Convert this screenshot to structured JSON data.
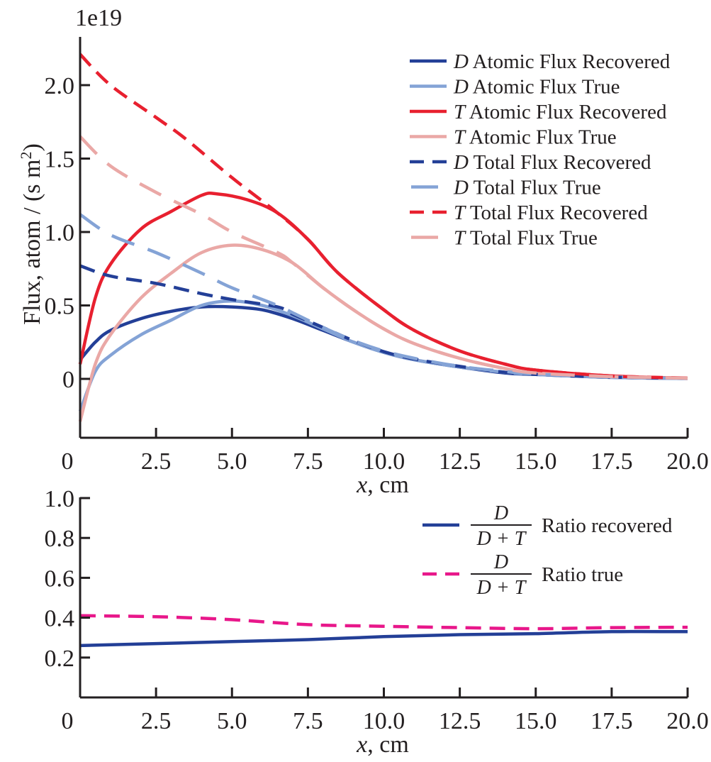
{
  "chart_data": [
    {
      "type": "line",
      "title": "",
      "offset_label": "1e19",
      "xlabel": "x, cm",
      "xlabel_var": "x",
      "xlabel_unit": ", cm",
      "ylabel": "Flux, atom / (s m²)",
      "ylabel_main": "Flux, atom / (s m",
      "ylabel_sup": "2",
      "ylabel_close": ")",
      "xlim": [
        0,
        20
      ],
      "ylim": [
        -0.4,
        2.33
      ],
      "xticks": [
        0,
        2.5,
        5.0,
        7.5,
        10.0,
        12.5,
        15.0,
        17.5,
        20.0
      ],
      "xtick_labels": [
        "0",
        "2.5",
        "5.0",
        "7.5",
        "10.0",
        "12.5",
        "15.0",
        "17.5",
        "20.0"
      ],
      "yticks": [
        0,
        0.5,
        1.0,
        1.5,
        2.0
      ],
      "ytick_labels": [
        "0",
        "0.5",
        "1.0",
        "1.5",
        "2.0"
      ],
      "grid": false,
      "legend_position": "top-right",
      "series": [
        {
          "name": "D Atomic Flux Recovered",
          "species": "D",
          "label_rest": " Atomic Flux Recovered",
          "color": "#233f97",
          "dash": "solid",
          "x": [
            0,
            0.5,
            1,
            2,
            3,
            4,
            5,
            6,
            7,
            8,
            9,
            10,
            11,
            12.5,
            14,
            15,
            17.5,
            20
          ],
          "y": [
            0.13,
            0.25,
            0.33,
            0.41,
            0.46,
            0.49,
            0.49,
            0.47,
            0.41,
            0.33,
            0.25,
            0.18,
            0.13,
            0.08,
            0.04,
            0.03,
            0.01,
            0.003
          ]
        },
        {
          "name": "D Atomic Flux True",
          "species": "D",
          "label_rest": " Atomic Flux True",
          "color": "#84a3d6",
          "dash": "solid",
          "x": [
            0,
            0.5,
            1,
            2,
            3,
            4,
            5,
            6,
            7,
            8,
            9,
            10,
            11,
            12.5,
            14,
            15,
            17.5,
            20
          ],
          "y": [
            -0.22,
            0.05,
            0.16,
            0.3,
            0.4,
            0.5,
            0.53,
            0.5,
            0.43,
            0.34,
            0.25,
            0.18,
            0.13,
            0.08,
            0.045,
            0.03,
            0.01,
            0.003
          ]
        },
        {
          "name": "T Atomic Flux Recovered",
          "species": "T",
          "label_rest": " Atomic Flux Recovered",
          "color": "#e8202f",
          "dash": "solid",
          "x": [
            0,
            0.5,
            1,
            2,
            3,
            4,
            4.5,
            5.5,
            6.5,
            7.5,
            8.5,
            10,
            11,
            12.5,
            14,
            15,
            17.5,
            20
          ],
          "y": [
            0.1,
            0.55,
            0.78,
            1.02,
            1.14,
            1.25,
            1.26,
            1.22,
            1.13,
            0.95,
            0.72,
            0.47,
            0.33,
            0.19,
            0.1,
            0.06,
            0.02,
            0.005
          ]
        },
        {
          "name": "T Atomic Flux True",
          "species": "T",
          "label_rest": " Atomic Flux True",
          "color": "#eaa8a6",
          "dash": "solid",
          "x": [
            0,
            0.5,
            1,
            2,
            3,
            4,
            5,
            6,
            7,
            8,
            9,
            10,
            11,
            12.5,
            14,
            15,
            17.5,
            20
          ],
          "y": [
            -0.29,
            0.1,
            0.3,
            0.55,
            0.72,
            0.86,
            0.91,
            0.88,
            0.79,
            0.62,
            0.47,
            0.34,
            0.24,
            0.14,
            0.07,
            0.04,
            0.015,
            0.005
          ]
        },
        {
          "name": "D Total Flux Recovered",
          "species": "D",
          "label_rest": " Total Flux Recovered",
          "color": "#233f97",
          "dash": "dashed",
          "x": [
            0,
            1,
            2.5,
            4,
            5,
            6.5,
            7,
            8,
            9,
            10,
            11,
            12.5,
            14,
            15,
            17.5,
            20
          ],
          "y": [
            0.77,
            0.7,
            0.65,
            0.58,
            0.54,
            0.49,
            0.44,
            0.35,
            0.26,
            0.185,
            0.135,
            0.085,
            0.045,
            0.03,
            0.012,
            0.004
          ]
        },
        {
          "name": "D Total Flux True",
          "species": "D",
          "label_rest": " Total Flux True",
          "color": "#84a3d6",
          "dash": "long-dashed",
          "x": [
            0,
            1,
            2.5,
            4,
            5,
            6.5,
            7,
            8,
            9,
            10,
            11,
            12.5,
            14,
            15,
            17.5,
            20
          ],
          "y": [
            1.12,
            0.98,
            0.86,
            0.72,
            0.62,
            0.5,
            0.45,
            0.35,
            0.26,
            0.19,
            0.14,
            0.085,
            0.05,
            0.032,
            0.012,
            0.004
          ]
        },
        {
          "name": "T Total Flux Recovered",
          "species": "T",
          "label_rest": " Total Flux Recovered",
          "color": "#e8202f",
          "dash": "dashed",
          "x": [
            0,
            1,
            2.5,
            3.5,
            5,
            6.5,
            7.5,
            8.5,
            10,
            11,
            12.5,
            14,
            15,
            17.5,
            20
          ],
          "y": [
            2.21,
            2.0,
            1.78,
            1.63,
            1.37,
            1.13,
            0.95,
            0.72,
            0.47,
            0.33,
            0.19,
            0.1,
            0.06,
            0.02,
            0.006
          ]
        },
        {
          "name": "T Total Flux True",
          "species": "T",
          "label_rest": " Total Flux True",
          "color": "#eaa8a6",
          "dash": "long-dashed",
          "x": [
            0,
            1,
            2.5,
            4,
            5,
            6.5,
            7,
            8,
            9,
            10,
            11,
            12.5,
            14,
            15,
            17.5,
            20
          ],
          "y": [
            1.65,
            1.45,
            1.27,
            1.12,
            1.0,
            0.86,
            0.79,
            0.62,
            0.47,
            0.34,
            0.24,
            0.14,
            0.07,
            0.04,
            0.015,
            0.005
          ]
        }
      ]
    },
    {
      "type": "line",
      "title": "",
      "xlabel": "x, cm",
      "xlabel_var": "x",
      "xlabel_unit": ", cm",
      "ylabel": "",
      "xlim": [
        0,
        20
      ],
      "ylim": [
        0,
        1.0
      ],
      "xticks": [
        0,
        2.5,
        5.0,
        7.5,
        10.0,
        12.5,
        15.0,
        17.5,
        20.0
      ],
      "xtick_labels": [
        "0",
        "2.5",
        "5.0",
        "7.5",
        "10.0",
        "12.5",
        "15.0",
        "17.5",
        "20.0"
      ],
      "yticks": [
        0.2,
        0.4,
        0.6,
        0.8,
        1.0
      ],
      "ytick_labels": [
        "0.2",
        "0.4",
        "0.6",
        "0.8",
        "1.0"
      ],
      "grid": false,
      "legend_position": "top-right",
      "series": [
        {
          "name": "D/(D + T) Ratio recovered",
          "frac_num": "D",
          "frac_den": "D + T",
          "label_rest": "Ratio recovered",
          "color": "#233f97",
          "dash": "solid",
          "x": [
            0,
            2.5,
            5,
            7.5,
            10,
            12.5,
            15,
            17.5,
            20
          ],
          "y": [
            0.26,
            0.27,
            0.28,
            0.29,
            0.305,
            0.315,
            0.32,
            0.33,
            0.33
          ]
        },
        {
          "name": "D/(D + T) Ratio true",
          "frac_num": "D",
          "frac_den": "D + T",
          "label_rest": "Ratio true",
          "color": "#e8178a",
          "dash": "dashed",
          "x": [
            0,
            2.5,
            5,
            7.5,
            10,
            12.5,
            15,
            17.5,
            20
          ],
          "y": [
            0.41,
            0.405,
            0.39,
            0.365,
            0.357,
            0.35,
            0.345,
            0.35,
            0.352
          ]
        }
      ]
    }
  ]
}
